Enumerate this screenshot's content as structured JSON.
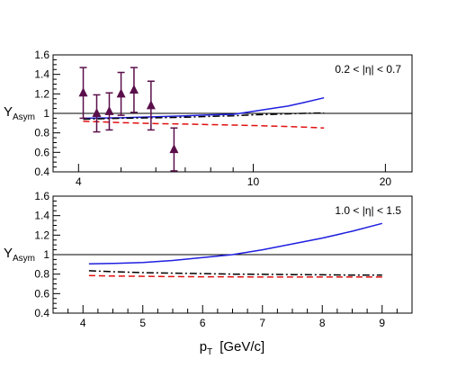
{
  "chart_data": [
    {
      "type": "line",
      "annotation": "0.2 < |η| < 0.7",
      "ylabel": "Y",
      "ylabel_sub": "Asym",
      "xscale": "log",
      "xlim": [
        3.5,
        23
      ],
      "ylim": [
        0.4,
        1.6
      ],
      "yticks": [
        0.4,
        0.6,
        0.8,
        1,
        1.2,
        1.4,
        1.6
      ],
      "ytick_labels": [
        "0.4",
        "0.6",
        "0.8",
        "1",
        "1.2",
        "1.4",
        "1.6"
      ],
      "xtick_major": [
        4,
        10,
        20
      ],
      "xtick_labels": [
        "4",
        "10",
        "20"
      ],
      "xtick_minor": [
        5,
        6,
        7,
        8,
        9,
        30
      ],
      "reference_y": 1,
      "grid": false,
      "series": [
        {
          "style": "solid-blue",
          "color": "#1f1fe0",
          "x": [
            4.1,
            5,
            6,
            7,
            8,
            9,
            10,
            11,
            12,
            13,
            14.5
          ],
          "y": [
            0.95,
            0.955,
            0.965,
            0.975,
            0.985,
            0.99,
            1.02,
            1.05,
            1.075,
            1.11,
            1.16
          ]
        },
        {
          "style": "dashdot-black",
          "color": "#000000",
          "x": [
            4.1,
            5,
            6,
            7,
            8,
            9,
            10,
            11,
            12,
            13,
            14.5
          ],
          "y": [
            0.94,
            0.95,
            0.955,
            0.96,
            0.97,
            0.975,
            0.985,
            0.99,
            0.995,
            1.0,
            1.005
          ]
        },
        {
          "style": "dashed-red",
          "color": "#e01010",
          "x": [
            4.1,
            5,
            6,
            7,
            8,
            9,
            10,
            11,
            12,
            13,
            14.5
          ],
          "y": [
            0.92,
            0.905,
            0.895,
            0.89,
            0.885,
            0.88,
            0.875,
            0.87,
            0.865,
            0.86,
            0.85
          ]
        },
        {
          "style": "markers-purple",
          "color": "#5a0f4a",
          "x": [
            4.1,
            4.4,
            4.7,
            5.0,
            5.35,
            5.85,
            6.6
          ],
          "y": [
            1.21,
            1.0,
            1.02,
            1.2,
            1.24,
            1.08,
            0.63
          ],
          "yerr": [
            0.26,
            0.19,
            0.19,
            0.22,
            0.23,
            0.25,
            0.22
          ]
        }
      ]
    },
    {
      "type": "line",
      "annotation": "1.0 < |η| < 1.5",
      "ylabel": "Y",
      "ylabel_sub": "Asym",
      "xlabel": "p",
      "xlabel_sub": "T",
      "xlabel_units": "[GeV/c]",
      "xlim": [
        3.5,
        9.5
      ],
      "ylim": [
        0.4,
        1.6
      ],
      "yticks": [
        0.4,
        0.6,
        0.8,
        1,
        1.2,
        1.4,
        1.6
      ],
      "ytick_labels": [
        "0.4",
        "0.6",
        "0.8",
        "1",
        "1.2",
        "1.4",
        "1.6"
      ],
      "xticks": [
        4,
        5,
        6,
        7,
        8,
        9
      ],
      "xtick_labels": [
        "4",
        "5",
        "6",
        "7",
        "8",
        "9"
      ],
      "reference_y": 1,
      "grid": false,
      "series": [
        {
          "style": "solid-blue",
          "color": "#1f1fe0",
          "x": [
            4.1,
            4.5,
            5,
            5.5,
            6,
            6.5,
            7,
            7.5,
            8,
            8.5,
            9
          ],
          "y": [
            0.905,
            0.91,
            0.92,
            0.94,
            0.97,
            1.0,
            1.05,
            1.11,
            1.17,
            1.24,
            1.32
          ]
        },
        {
          "style": "dashdot-black",
          "color": "#000000",
          "x": [
            4.1,
            4.5,
            5,
            5.5,
            6,
            6.5,
            7,
            7.5,
            8,
            8.5,
            9
          ],
          "y": [
            0.835,
            0.825,
            0.815,
            0.81,
            0.805,
            0.8,
            0.798,
            0.795,
            0.793,
            0.79,
            0.79
          ]
        },
        {
          "style": "dashed-red",
          "color": "#e01010",
          "x": [
            4.1,
            4.5,
            5,
            5.5,
            6,
            6.5,
            7,
            7.5,
            8,
            8.5,
            9
          ],
          "y": [
            0.785,
            0.78,
            0.778,
            0.775,
            0.773,
            0.772,
            0.77,
            0.77,
            0.77,
            0.77,
            0.77
          ]
        }
      ]
    }
  ]
}
